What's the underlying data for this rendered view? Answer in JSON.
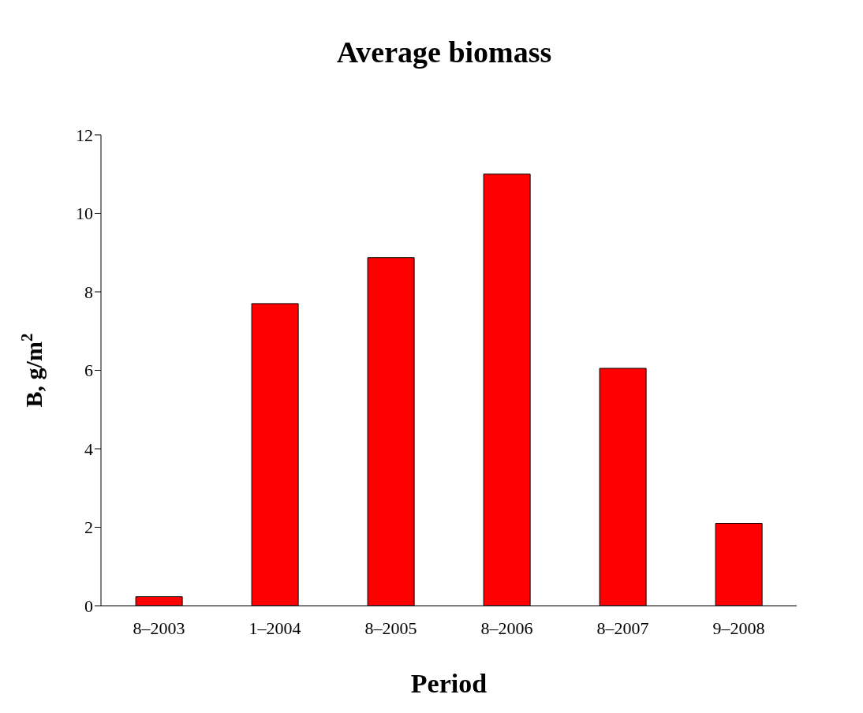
{
  "chart_data": {
    "type": "bar",
    "title": "Average biomass",
    "xlabel": "Period",
    "ylabel": "B, g/m$^{2}$",
    "categories": [
      "8–2003",
      "1–2004",
      "8–2005",
      "8–2006",
      "8–2007",
      "9–2008"
    ],
    "values": [
      0.23,
      7.7,
      8.87,
      11.0,
      6.05,
      2.1
    ],
    "color": "#ff0000",
    "ylim": [
      0,
      12
    ],
    "yticks": [
      0,
      2,
      4,
      6,
      8,
      10,
      12
    ],
    "grid": false,
    "legend": false
  }
}
